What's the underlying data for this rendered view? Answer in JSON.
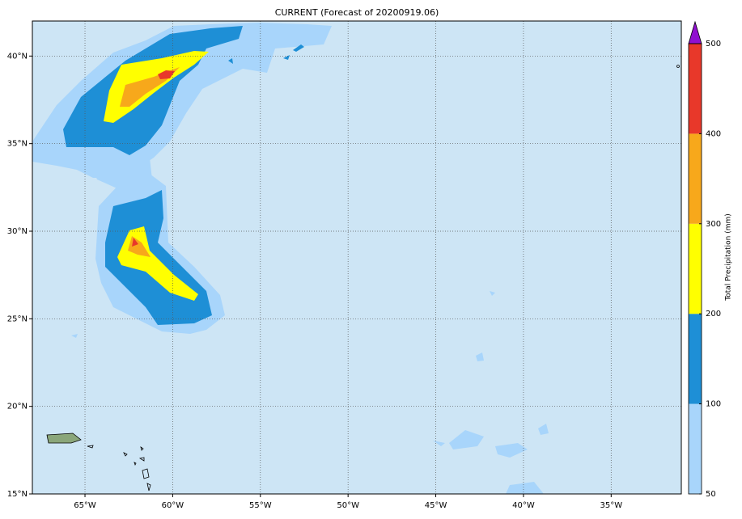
{
  "map": {
    "title": "CURRENT (Forecast of 20200919.06)",
    "lonlim": [
      -68,
      -31
    ],
    "latlim": [
      15,
      42
    ],
    "lonticks": [
      {
        "value": -65,
        "label": "65°W"
      },
      {
        "value": -60,
        "label": "60°W"
      },
      {
        "value": -55,
        "label": "55°W"
      },
      {
        "value": -50,
        "label": "50°W"
      },
      {
        "value": -45,
        "label": "45°W"
      },
      {
        "value": -40,
        "label": "40°W"
      },
      {
        "value": -35,
        "label": "35°W"
      }
    ],
    "latticks": [
      {
        "value": 15,
        "label": "15°N"
      },
      {
        "value": 20,
        "label": "20°N"
      },
      {
        "value": 25,
        "label": "25°N"
      },
      {
        "value": 30,
        "label": "30°N"
      },
      {
        "value": 35,
        "label": "35°N"
      },
      {
        "value": 40,
        "label": "40°N"
      }
    ],
    "ocean_color": "#cde5f5",
    "colorbar": {
      "label": "Total Precipitation (mm)",
      "levels": [
        50,
        100,
        200,
        300,
        400,
        500
      ],
      "colors": [
        "#a8d5fb",
        "#1e8fd6",
        "#ffff00",
        "#f7a81b",
        "#e8382a"
      ],
      "extend_color": "#9010d0"
    }
  }
}
